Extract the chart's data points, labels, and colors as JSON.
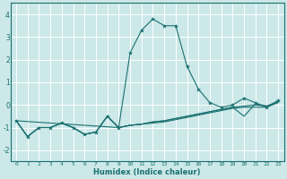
{
  "title": "",
  "xlabel": "Humidex (Indice chaleur)",
  "ylabel": "",
  "background_color": "#cce8e8",
  "grid_color": "#ffffff",
  "line_color": "#1a7070",
  "xlim": [
    -0.5,
    23.5
  ],
  "ylim": [
    -2.5,
    4.5
  ],
  "yticks": [
    -2,
    -1,
    0,
    1,
    2,
    3,
    4
  ],
  "xticks": [
    0,
    1,
    2,
    3,
    4,
    5,
    6,
    7,
    8,
    9,
    10,
    11,
    12,
    13,
    14,
    15,
    16,
    17,
    18,
    19,
    20,
    21,
    22,
    23
  ],
  "series_main": [
    [
      0,
      -0.7
    ],
    [
      1,
      -1.4
    ],
    [
      2,
      -1.0
    ],
    [
      3,
      -1.0
    ],
    [
      4,
      -0.8
    ],
    [
      5,
      -1.0
    ],
    [
      6,
      -1.3
    ],
    [
      7,
      -1.2
    ],
    [
      8,
      -0.5
    ],
    [
      9,
      -1.0
    ],
    [
      10,
      2.3
    ],
    [
      11,
      3.3
    ],
    [
      12,
      3.8
    ],
    [
      13,
      3.5
    ],
    [
      14,
      3.5
    ],
    [
      15,
      1.7
    ],
    [
      16,
      0.7
    ],
    [
      17,
      0.1
    ],
    [
      18,
      -0.1
    ],
    [
      19,
      0.0
    ],
    [
      20,
      0.3
    ],
    [
      21,
      0.1
    ],
    [
      22,
      -0.1
    ],
    [
      23,
      0.2
    ]
  ],
  "series_flat1": [
    [
      0,
      -0.7
    ],
    [
      1,
      -1.4
    ],
    [
      2,
      -1.0
    ],
    [
      3,
      -1.0
    ],
    [
      4,
      -0.8
    ],
    [
      5,
      -1.0
    ],
    [
      6,
      -1.3
    ],
    [
      7,
      -1.2
    ],
    [
      8,
      -0.5
    ],
    [
      9,
      -1.0
    ],
    [
      10,
      -0.9
    ],
    [
      11,
      -0.85
    ],
    [
      12,
      -0.8
    ],
    [
      13,
      -0.75
    ],
    [
      14,
      -0.65
    ],
    [
      15,
      -0.55
    ],
    [
      16,
      -0.45
    ],
    [
      17,
      -0.35
    ],
    [
      18,
      -0.25
    ],
    [
      19,
      -0.15
    ],
    [
      20,
      -0.1
    ],
    [
      21,
      -0.1
    ],
    [
      22,
      -0.1
    ],
    [
      23,
      0.1
    ]
  ],
  "series_flat2": [
    [
      0,
      -0.7
    ],
    [
      1,
      -1.4
    ],
    [
      2,
      -1.0
    ],
    [
      3,
      -1.0
    ],
    [
      4,
      -0.8
    ],
    [
      5,
      -1.0
    ],
    [
      6,
      -1.3
    ],
    [
      7,
      -1.2
    ],
    [
      8,
      -0.5
    ],
    [
      9,
      -1.0
    ],
    [
      10,
      -0.9
    ],
    [
      11,
      -0.85
    ],
    [
      12,
      -0.75
    ],
    [
      13,
      -0.7
    ],
    [
      14,
      -0.6
    ],
    [
      15,
      -0.5
    ],
    [
      16,
      -0.4
    ],
    [
      17,
      -0.3
    ],
    [
      18,
      -0.2
    ],
    [
      19,
      -0.1
    ],
    [
      20,
      -0.05
    ],
    [
      21,
      0.0
    ],
    [
      22,
      -0.05
    ],
    [
      23,
      0.15
    ]
  ],
  "series_flat3": [
    [
      0,
      -0.7
    ],
    [
      9,
      -1.0
    ],
    [
      10,
      -0.9
    ],
    [
      11,
      -0.85
    ],
    [
      12,
      -0.75
    ],
    [
      13,
      -0.7
    ],
    [
      14,
      -0.6
    ],
    [
      15,
      -0.5
    ],
    [
      16,
      -0.4
    ],
    [
      17,
      -0.3
    ],
    [
      18,
      -0.2
    ],
    [
      19,
      -0.1
    ],
    [
      20,
      -0.5
    ],
    [
      21,
      0.05
    ],
    [
      22,
      -0.05
    ],
    [
      23,
      0.15
    ]
  ]
}
